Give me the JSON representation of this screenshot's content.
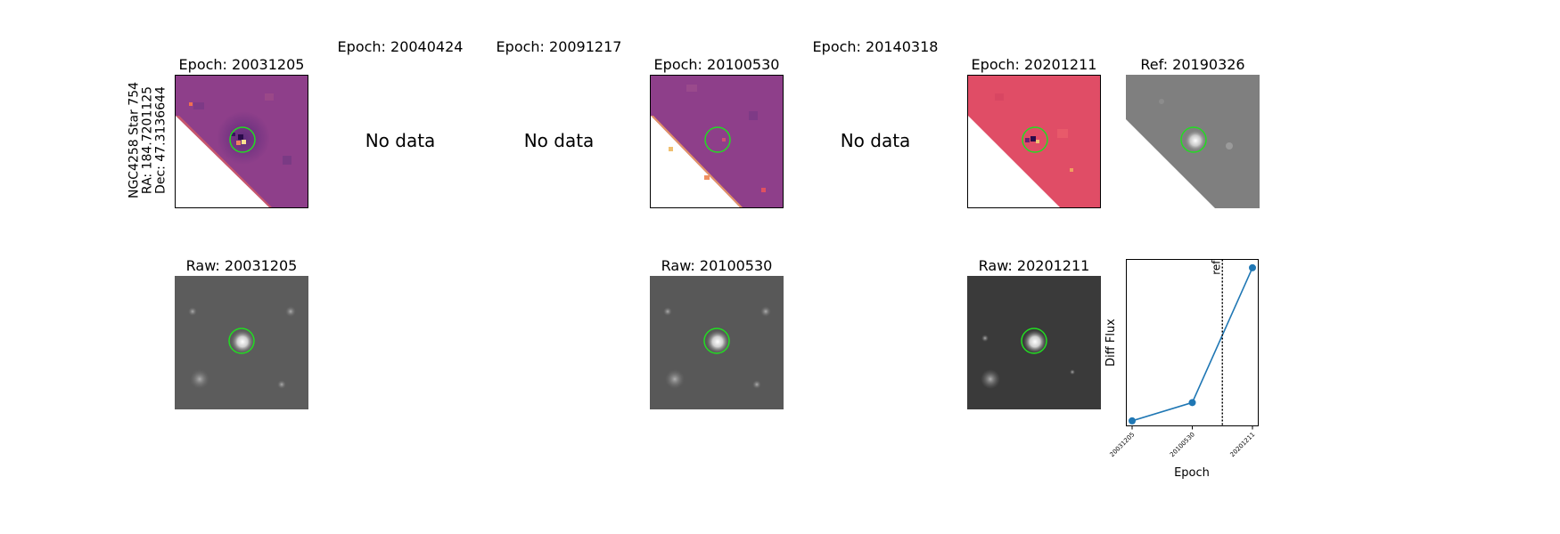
{
  "row_label": [
    "NGC4258 Star 754",
    "RA: 184.7201125",
    "Dec: 47.3136644"
  ],
  "diff_panels": [
    {
      "title": "Epoch: 20031205",
      "has_data": true
    },
    {
      "title": "Epoch: 20040424",
      "has_data": false,
      "no_data_text": "No data"
    },
    {
      "title": "Epoch: 20091217",
      "has_data": false,
      "no_data_text": "No data"
    },
    {
      "title": "Epoch: 20100530",
      "has_data": true
    },
    {
      "title": "Epoch: 20140318",
      "has_data": false,
      "no_data_text": "No data"
    },
    {
      "title": "Epoch: 20201211",
      "has_data": true
    }
  ],
  "ref_panel": {
    "title": "Ref: 20190326"
  },
  "raw_panels": [
    {
      "title": "Raw: 20031205"
    },
    {
      "title": "Raw: 20100530"
    },
    {
      "title": "Raw: 20201211"
    }
  ],
  "colors": {
    "marker_circle": "#22dd22",
    "line": "#1f77b4",
    "diff_purple": "#8e3f8a",
    "diff_pink": "#e04d66"
  },
  "chart_data": {
    "type": "line",
    "xlabel": "Epoch",
    "ylabel": "Diff Flux",
    "x": [
      "20031205",
      "20100530",
      "20201211"
    ],
    "y_relative": [
      0.03,
      0.14,
      0.95
    ],
    "ref_label": "ref",
    "ref_position_between": [
      "20100530",
      "20201211"
    ],
    "ref_fraction": 0.5,
    "y_ticks_shown": false
  }
}
